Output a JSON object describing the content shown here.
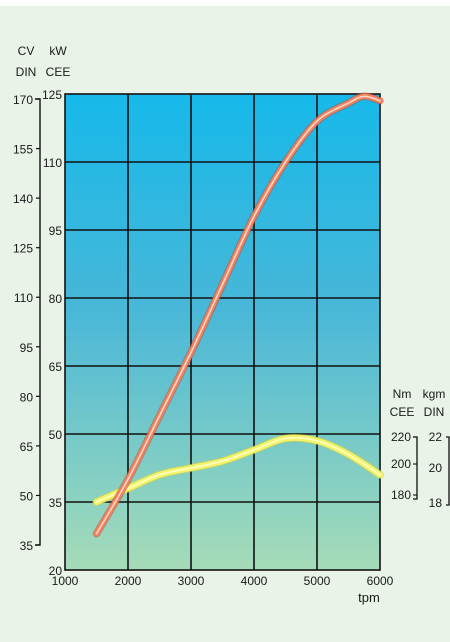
{
  "chart_data": {
    "type": "line",
    "xlabel": "tpm",
    "x_ticks": [
      1000,
      2000,
      3000,
      4000,
      5000,
      6000
    ],
    "xlim": [
      1000,
      6000
    ],
    "power_axes": {
      "cv_din": {
        "label_top": "CV",
        "label_bottom": "DIN",
        "ticks": [
          170,
          155,
          140,
          125,
          110,
          95,
          80,
          65,
          50,
          35
        ]
      },
      "kw_cee": {
        "label_top": "kW",
        "label_bottom": "CEE",
        "ticks": [
          125,
          110,
          95,
          80,
          65,
          50,
          35,
          20
        ]
      },
      "ylim_kw": [
        20,
        125
      ]
    },
    "torque_axes": {
      "nm_cee": {
        "label_top": "Nm",
        "label_bottom": "CEE",
        "ticks": [
          220,
          200,
          180
        ]
      },
      "kgm_din": {
        "label_top": "kgm",
        "label_bottom": "DIN",
        "ticks": [
          22,
          20,
          18
        ]
      }
    },
    "series": [
      {
        "role": "power",
        "color": "#f0805e",
        "unit": "kW CEE",
        "x": [
          1500,
          2000,
          2500,
          3000,
          3500,
          4000,
          4500,
          5000,
          5500,
          5750,
          6000
        ],
        "y": [
          28,
          40,
          54,
          68,
          83,
          98,
          110,
          119,
          123,
          124.5,
          123.5
        ]
      },
      {
        "role": "torque",
        "color": "#f4f36c",
        "unit": "kW CEE",
        "x": [
          1500,
          2000,
          2500,
          3000,
          3500,
          4000,
          4500,
          5000,
          5500,
          6000
        ],
        "y": [
          35,
          38,
          41,
          42.5,
          44,
          46.5,
          49,
          48.5,
          45.5,
          41
        ]
      }
    ]
  }
}
